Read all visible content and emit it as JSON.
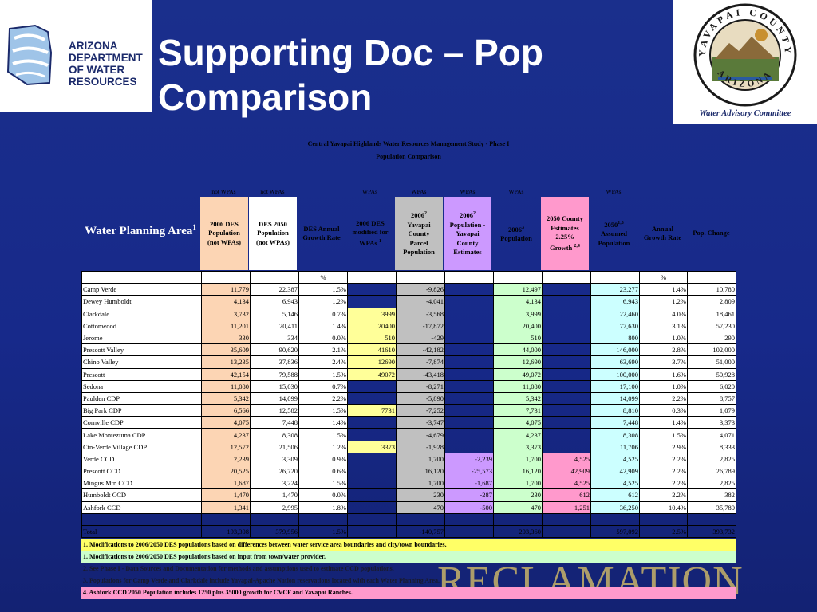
{
  "header": {
    "title_line1": "Supporting Doc – Pop",
    "title_line2": "Comparison"
  },
  "logo_left": {
    "lines": [
      "ARIZONA",
      "DEPARTMENT",
      "OF WATER",
      "RESOURCES"
    ]
  },
  "logo_right": {
    "seal_top": "YAVAPAI COUNTY",
    "seal_bottom": "ARIZONA",
    "committee": "Water Advisory Committee"
  },
  "watermark": "RECLAMATION",
  "study": {
    "title": "Central Yavapai Highlands Water Resources Management Study - Phase I",
    "subtitle": "Population Comparison"
  },
  "wpa_tags": [
    "not WPAs",
    "not WPAs",
    "WPAs",
    "WPAs",
    "WPAs",
    "WPAs",
    "WPAs"
  ],
  "columns": {
    "area": "Water Planning Area",
    "area_sup": "1",
    "c1": [
      "2006 DES",
      "Population",
      "(not WPAs)"
    ],
    "c2": [
      "DES 2050",
      "Population",
      "(not WPAs)"
    ],
    "c3": [
      "DES Annual",
      "Growth Rate"
    ],
    "c4": [
      "2006 DES",
      "modified for",
      "WPAs "
    ],
    "c4_sup": "1",
    "c5_pre": "2006",
    "c5_sup": "2",
    "c5": [
      "Yavapai",
      "County",
      "Parcel",
      "Population"
    ],
    "c6_pre": "2006",
    "c6_sup": "2",
    "c6": [
      "Population -",
      "Yavapai",
      "County",
      "Estimates"
    ],
    "c7_pre": "2006",
    "c7_sup": "3",
    "c7": [
      "Population"
    ],
    "c8": [
      "2050 County",
      "Estimates",
      "2.25%",
      "Growth "
    ],
    "c8_sup": "2,4",
    "c9_pre": "2050",
    "c9_sup": "1,3",
    "c9": [
      "Assumed",
      "Population"
    ],
    "c10": [
      "Annual",
      "Growth Rate"
    ],
    "c11": [
      "Pop. Change"
    ],
    "pct1": "%",
    "pct2": "%"
  },
  "rows": [
    [
      "Camp Verde",
      "11,779",
      "22,387",
      "1.5%",
      "",
      "-9,826",
      "",
      "12,497",
      "",
      "23,277",
      "1.4%",
      "10,780"
    ],
    [
      "Dewey Humboldt",
      "4,134",
      "6,943",
      "1.2%",
      "",
      "-4,041",
      "",
      "4,134",
      "",
      "6,943",
      "1.2%",
      "2,809"
    ],
    [
      "Clarkdale",
      "3,732",
      "5,146",
      "0.7%",
      "3999",
      "-3,568",
      "",
      "3,999",
      "",
      "22,460",
      "4.0%",
      "18,461"
    ],
    [
      "Cottonwood",
      "11,201",
      "20,411",
      "1.4%",
      "20400",
      "-17,872",
      "",
      "20,400",
      "",
      "77,630",
      "3.1%",
      "57,230"
    ],
    [
      "Jerome",
      "330",
      "334",
      "0.0%",
      "510",
      "-429",
      "",
      "510",
      "",
      "800",
      "1.0%",
      "290"
    ],
    [
      "Prescott Valley",
      "35,609",
      "90,620",
      "2.1%",
      "41610",
      "-42,182",
      "",
      "44,000",
      "",
      "146,000",
      "2.8%",
      "102,000"
    ],
    [
      "Chino Valley",
      "13,235",
      "37,836",
      "2.4%",
      "12690",
      "-7,874",
      "",
      "12,690",
      "",
      "63,690",
      "3.7%",
      "51,000"
    ],
    [
      "Prescott",
      "42,154",
      "79,588",
      "1.5%",
      "49072",
      "-43,418",
      "",
      "49,072",
      "",
      "100,000",
      "1.6%",
      "50,928"
    ],
    [
      "Sedona",
      "11,080",
      "15,030",
      "0.7%",
      "",
      "-8,271",
      "",
      "11,080",
      "",
      "17,100",
      "1.0%",
      "6,020"
    ],
    [
      "Paulden CDP",
      "5,342",
      "14,099",
      "2.2%",
      "",
      "-5,890",
      "",
      "5,342",
      "",
      "14,099",
      "2.2%",
      "8,757"
    ],
    [
      "Big Park CDP",
      "6,566",
      "12,582",
      "1.5%",
      "7731",
      "-7,252",
      "",
      "7,731",
      "",
      "8,810",
      "0.3%",
      "1,079"
    ],
    [
      "Cornville CDP",
      "4,075",
      "7,448",
      "1.4%",
      "",
      "-3,747",
      "",
      "4,075",
      "",
      "7,448",
      "1.4%",
      "3,373"
    ],
    [
      "Lake Montezuma CDP",
      "4,237",
      "8,308",
      "1.5%",
      "",
      "-4,679",
      "",
      "4,237",
      "",
      "8,308",
      "1.5%",
      "4,071"
    ],
    [
      "Ctn-Verde Village CDP",
      "12,572",
      "21,506",
      "1.2%",
      "3373",
      "-1,928",
      "",
      "3,373",
      "",
      "11,706",
      "2.9%",
      "8,333"
    ],
    [
      "Verde CCD",
      "2,239",
      "3,309",
      "0.9%",
      "",
      "1,700",
      "-2,239",
      "1,700",
      "4,525",
      "4,525",
      "2.2%",
      "2,825"
    ],
    [
      "Prescott CCD",
      "20,525",
      "26,720",
      "0.6%",
      "",
      "16,120",
      "-25,573",
      "16,120",
      "42,909",
      "42,909",
      "2.2%",
      "26,789"
    ],
    [
      "Mingus Mtn CCD",
      "1,687",
      "3,224",
      "1.5%",
      "",
      "1,700",
      "-1,687",
      "1,700",
      "4,525",
      "4,525",
      "2.2%",
      "2,825"
    ],
    [
      "Humboldt CCD",
      "1,470",
      "1,470",
      "0.0%",
      "",
      "230",
      "-287",
      "230",
      "612",
      "612",
      "2.2%",
      "382"
    ],
    [
      "Ashfork CCD",
      "1,341",
      "2,995",
      "1.8%",
      "",
      "470",
      "-500",
      "470",
      "1,251",
      "36,250",
      "10.4%",
      "35,780"
    ]
  ],
  "total": [
    "Total",
    "193,308",
    "379,956",
    "1.5%",
    "",
    "-140,757",
    "",
    "203,360",
    "",
    "597,092",
    "2.5%",
    "393,732"
  ],
  "notes": [
    "1. Modifications to 2006/2050 DES populations based on differences between water service area boundaries and city/town boundaries.",
    "1. Modifications to 2006/2050 DES populations based on input from town/water provider.",
    "2. See Phase I - Data Sources and Documentation for methods and assumptions used to estimate CCD populations.",
    "3. Populations for Camp Verde and Clarkdale include Yavapai-Apache Nation reservations located with each Water Planning Area.",
    "4. Ashfork CCD 2050 Population includes 1250 plus 35000 growth for CVCF and Yavapai Ranches."
  ]
}
